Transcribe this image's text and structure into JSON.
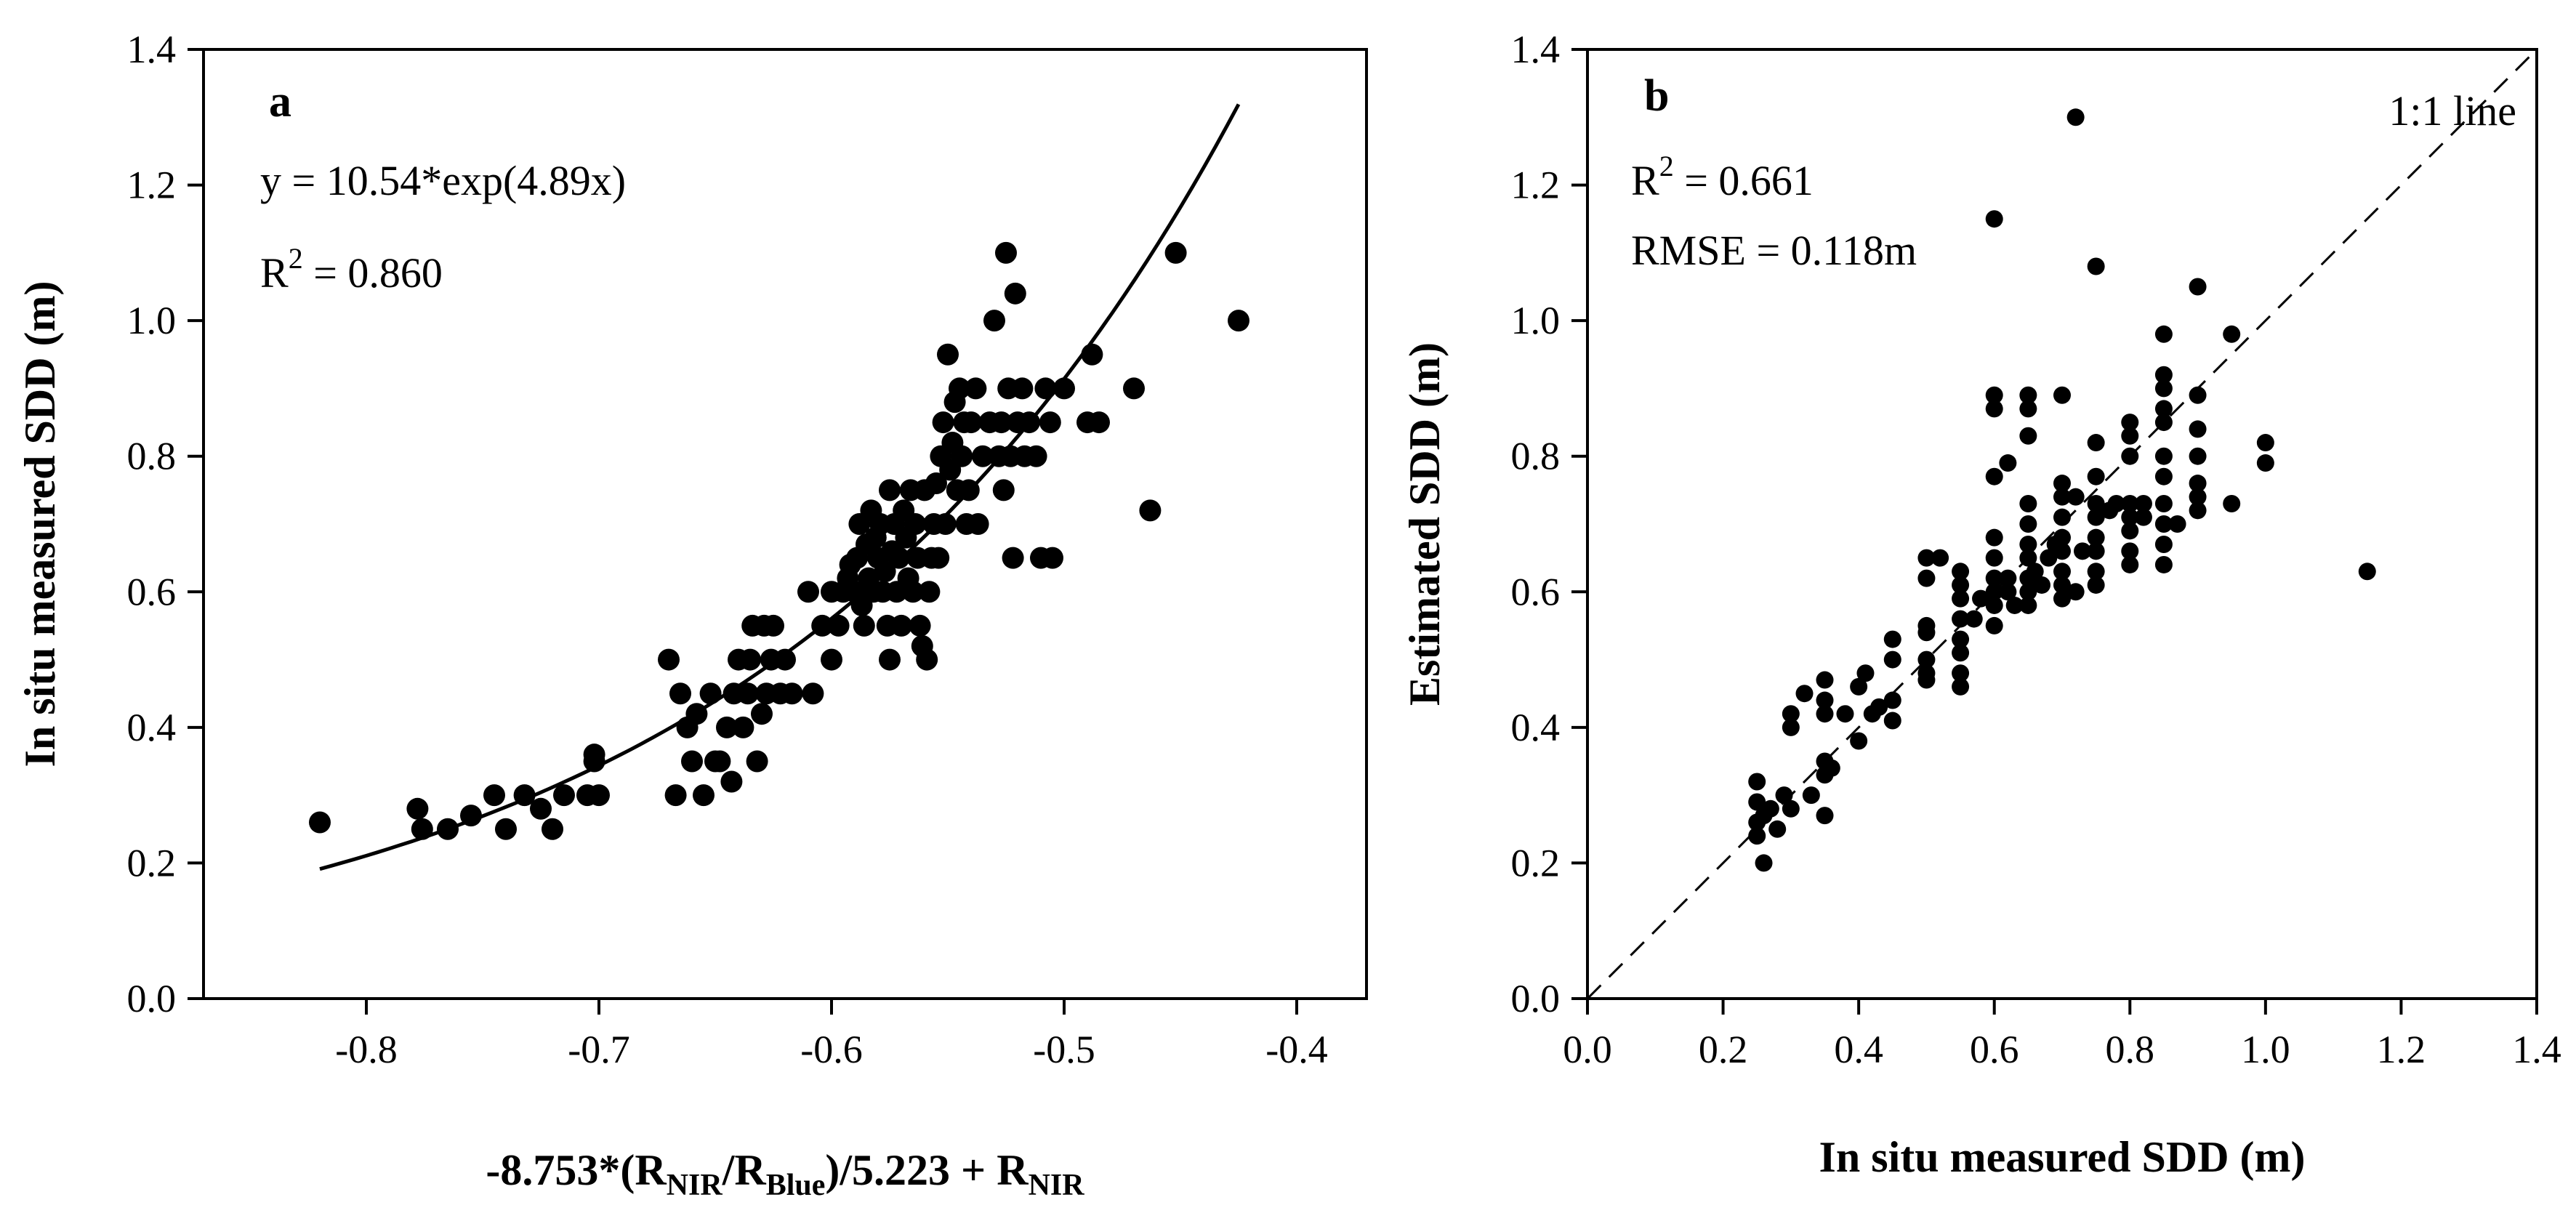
{
  "chart_data": [
    {
      "type": "scatter",
      "panel": "a",
      "xlabel_parts": [
        "-8.753*(R",
        "NIR",
        "/R",
        "Blue",
        ")/5.223 + R",
        "NIR"
      ],
      "ylabel": "In situ measured SDD (m)",
      "xlim": [
        -0.87,
        -0.37
      ],
      "ylim": [
        0.0,
        1.4
      ],
      "xticks": [
        -0.8,
        -0.7,
        -0.6,
        -0.5,
        -0.4
      ],
      "xtick_labels": [
        "-0.8",
        "-0.7",
        "-0.6",
        "-0.5",
        "-0.4"
      ],
      "yticks": [
        0.0,
        0.2,
        0.4,
        0.6,
        0.8,
        1.0,
        1.2,
        1.4
      ],
      "ytick_labels": [
        "0.0",
        "0.2",
        "0.4",
        "0.6",
        "0.8",
        "1.0",
        "1.2",
        "1.4"
      ],
      "annotations": {
        "equation": "y = 10.54*exp(4.89x)",
        "r2_prefix": "R",
        "r2_sup": "2",
        "r2_value": " = 0.860"
      },
      "fit": {
        "model": "exponential",
        "a": 10.54,
        "b": 4.89,
        "x_range": [
          -0.82,
          -0.425
        ]
      },
      "points": [
        [
          -0.82,
          0.26
        ],
        [
          -0.778,
          0.28
        ],
        [
          -0.776,
          0.25
        ],
        [
          -0.765,
          0.25
        ],
        [
          -0.755,
          0.27
        ],
        [
          -0.745,
          0.3
        ],
        [
          -0.74,
          0.25
        ],
        [
          -0.732,
          0.3
        ],
        [
          -0.725,
          0.28
        ],
        [
          -0.72,
          0.25
        ],
        [
          -0.715,
          0.3
        ],
        [
          -0.705,
          0.3
        ],
        [
          -0.702,
          0.35
        ],
        [
          -0.7,
          0.3
        ],
        [
          -0.702,
          0.36
        ],
        [
          -0.67,
          0.5
        ],
        [
          -0.667,
          0.3
        ],
        [
          -0.665,
          0.45
        ],
        [
          -0.662,
          0.4
        ],
        [
          -0.66,
          0.35
        ],
        [
          -0.658,
          0.42
        ],
        [
          -0.655,
          0.3
        ],
        [
          -0.652,
          0.45
        ],
        [
          -0.65,
          0.35
        ],
        [
          -0.648,
          0.35
        ],
        [
          -0.645,
          0.4
        ],
        [
          -0.643,
          0.32
        ],
        [
          -0.642,
          0.45
        ],
        [
          -0.64,
          0.5
        ],
        [
          -0.638,
          0.4
        ],
        [
          -0.636,
          0.45
        ],
        [
          -0.635,
          0.5
        ],
        [
          -0.634,
          0.55
        ],
        [
          -0.632,
          0.35
        ],
        [
          -0.63,
          0.42
        ],
        [
          -0.629,
          0.55
        ],
        [
          -0.628,
          0.45
        ],
        [
          -0.626,
          0.5
        ],
        [
          -0.625,
          0.55
        ],
        [
          -0.622,
          0.45
        ],
        [
          -0.62,
          0.5
        ],
        [
          -0.617,
          0.45
        ],
        [
          -0.61,
          0.6
        ],
        [
          -0.608,
          0.45
        ],
        [
          -0.604,
          0.55
        ],
        [
          -0.6,
          0.5
        ],
        [
          -0.6,
          0.6
        ],
        [
          -0.597,
          0.55
        ],
        [
          -0.595,
          0.6
        ],
        [
          -0.593,
          0.62
        ],
        [
          -0.592,
          0.64
        ],
        [
          -0.59,
          0.6
        ],
        [
          -0.589,
          0.65
        ],
        [
          -0.588,
          0.7
        ],
        [
          -0.587,
          0.58
        ],
        [
          -0.586,
          0.55
        ],
        [
          -0.585,
          0.67
        ],
        [
          -0.584,
          0.62
        ],
        [
          -0.583,
          0.72
        ],
        [
          -0.582,
          0.6
        ],
        [
          -0.581,
          0.68
        ],
        [
          -0.58,
          0.65
        ],
        [
          -0.579,
          0.7
        ],
        [
          -0.578,
          0.6
        ],
        [
          -0.577,
          0.63
        ],
        [
          -0.576,
          0.55
        ],
        [
          -0.575,
          0.75
        ],
        [
          -0.575,
          0.5
        ],
        [
          -0.574,
          0.66
        ],
        [
          -0.573,
          0.7
        ],
        [
          -0.572,
          0.6
        ],
        [
          -0.571,
          0.65
        ],
        [
          -0.57,
          0.55
        ],
        [
          -0.569,
          0.72
        ],
        [
          -0.568,
          0.68
        ],
        [
          -0.567,
          0.62
        ],
        [
          -0.566,
          0.75
        ],
        [
          -0.565,
          0.6
        ],
        [
          -0.564,
          0.7
        ],
        [
          -0.563,
          0.65
        ],
        [
          -0.562,
          0.55
        ],
        [
          -0.561,
          0.52
        ],
        [
          -0.56,
          0.75
        ],
        [
          -0.559,
          0.5
        ],
        [
          -0.558,
          0.6
        ],
        [
          -0.557,
          0.65
        ],
        [
          -0.556,
          0.7
        ],
        [
          -0.555,
          0.76
        ],
        [
          -0.554,
          0.65
        ],
        [
          -0.553,
          0.8
        ],
        [
          -0.552,
          0.85
        ],
        [
          -0.551,
          0.7
        ],
        [
          -0.55,
          0.95
        ],
        [
          -0.549,
          0.78
        ],
        [
          -0.548,
          0.82
        ],
        [
          -0.547,
          0.88
        ],
        [
          -0.546,
          0.75
        ],
        [
          -0.545,
          0.9
        ],
        [
          -0.544,
          0.8
        ],
        [
          -0.543,
          0.85
        ],
        [
          -0.542,
          0.7
        ],
        [
          -0.541,
          0.75
        ],
        [
          -0.54,
          0.85
        ],
        [
          -0.538,
          0.9
        ],
        [
          -0.537,
          0.7
        ],
        [
          -0.535,
          0.8
        ],
        [
          -0.532,
          0.85
        ],
        [
          -0.53,
          1.0
        ],
        [
          -0.528,
          0.8
        ],
        [
          -0.527,
          0.85
        ],
        [
          -0.526,
          0.75
        ],
        [
          -0.525,
          1.1
        ],
        [
          -0.524,
          0.9
        ],
        [
          -0.523,
          0.8
        ],
        [
          -0.522,
          0.65
        ],
        [
          -0.521,
          1.04
        ],
        [
          -0.52,
          0.85
        ],
        [
          -0.518,
          0.9
        ],
        [
          -0.517,
          0.8
        ],
        [
          -0.515,
          0.85
        ],
        [
          -0.512,
          0.8
        ],
        [
          -0.51,
          0.65
        ],
        [
          -0.508,
          0.9
        ],
        [
          -0.506,
          0.85
        ],
        [
          -0.505,
          0.65
        ],
        [
          -0.5,
          0.9
        ],
        [
          -0.49,
          0.85
        ],
        [
          -0.488,
          0.95
        ],
        [
          -0.485,
          0.85
        ],
        [
          -0.47,
          0.9
        ],
        [
          -0.463,
          0.72
        ],
        [
          -0.452,
          1.1
        ],
        [
          -0.425,
          1.0
        ]
      ]
    },
    {
      "type": "scatter",
      "panel": "b",
      "xlabel": "In situ measured SDD (m)",
      "ylabel": "Estimated SDD (m)",
      "xlim": [
        0.0,
        1.4
      ],
      "ylim": [
        0.0,
        1.4
      ],
      "xticks": [
        0.0,
        0.2,
        0.4,
        0.6,
        0.8,
        1.0,
        1.2,
        1.4
      ],
      "xtick_labels": [
        "0.0",
        "0.2",
        "0.4",
        "0.6",
        "0.8",
        "1.0",
        "1.2",
        "1.4"
      ],
      "yticks": [
        0.0,
        0.2,
        0.4,
        0.6,
        0.8,
        1.0,
        1.2,
        1.4
      ],
      "ytick_labels": [
        "0.0",
        "0.2",
        "0.4",
        "0.6",
        "0.8",
        "1.0",
        "1.2",
        "1.4"
      ],
      "annotations": {
        "r2_prefix": "R",
        "r2_sup": "2",
        "r2_value": " = 0.661",
        "rmse": "RMSE = 0.118m",
        "line_label": "1:1 line"
      },
      "reference_line": {
        "from": [
          0.0,
          0.0
        ],
        "to": [
          1.4,
          1.4
        ],
        "style": "dashed"
      },
      "points": [
        [
          0.25,
          0.32
        ],
        [
          0.25,
          0.26
        ],
        [
          0.25,
          0.24
        ],
        [
          0.26,
          0.2
        ],
        [
          0.25,
          0.29
        ],
        [
          0.26,
          0.27
        ],
        [
          0.28,
          0.25
        ],
        [
          0.27,
          0.28
        ],
        [
          0.29,
          0.3
        ],
        [
          0.3,
          0.42
        ],
        [
          0.3,
          0.4
        ],
        [
          0.3,
          0.28
        ],
        [
          0.32,
          0.45
        ],
        [
          0.33,
          0.3
        ],
        [
          0.35,
          0.47
        ],
        [
          0.35,
          0.44
        ],
        [
          0.35,
          0.42
        ],
        [
          0.35,
          0.35
        ],
        [
          0.35,
          0.33
        ],
        [
          0.35,
          0.27
        ],
        [
          0.36,
          0.34
        ],
        [
          0.38,
          0.42
        ],
        [
          0.4,
          0.46
        ],
        [
          0.4,
          0.38
        ],
        [
          0.41,
          0.48
        ],
        [
          0.42,
          0.42
        ],
        [
          0.43,
          0.43
        ],
        [
          0.45,
          0.53
        ],
        [
          0.45,
          0.5
        ],
        [
          0.45,
          0.44
        ],
        [
          0.45,
          0.41
        ],
        [
          0.5,
          0.65
        ],
        [
          0.5,
          0.62
        ],
        [
          0.5,
          0.55
        ],
        [
          0.5,
          0.54
        ],
        [
          0.5,
          0.5
        ],
        [
          0.5,
          0.48
        ],
        [
          0.5,
          0.47
        ],
        [
          0.52,
          0.65
        ],
        [
          0.55,
          0.63
        ],
        [
          0.55,
          0.61
        ],
        [
          0.55,
          0.59
        ],
        [
          0.55,
          0.56
        ],
        [
          0.55,
          0.53
        ],
        [
          0.55,
          0.51
        ],
        [
          0.55,
          0.48
        ],
        [
          0.55,
          0.46
        ],
        [
          0.57,
          0.56
        ],
        [
          0.58,
          0.59
        ],
        [
          0.6,
          0.89
        ],
        [
          0.6,
          0.87
        ],
        [
          0.6,
          0.77
        ],
        [
          0.6,
          0.68
        ],
        [
          0.6,
          0.65
        ],
        [
          0.6,
          0.62
        ],
        [
          0.6,
          0.6
        ],
        [
          0.6,
          0.58
        ],
        [
          0.6,
          0.55
        ],
        [
          0.6,
          1.15
        ],
        [
          0.62,
          0.79
        ],
        [
          0.62,
          0.62
        ],
        [
          0.62,
          0.6
        ],
        [
          0.63,
          0.58
        ],
        [
          0.65,
          0.89
        ],
        [
          0.65,
          0.87
        ],
        [
          0.65,
          0.83
        ],
        [
          0.65,
          0.73
        ],
        [
          0.65,
          0.7
        ],
        [
          0.65,
          0.67
        ],
        [
          0.65,
          0.65
        ],
        [
          0.65,
          0.62
        ],
        [
          0.65,
          0.6
        ],
        [
          0.65,
          0.58
        ],
        [
          0.66,
          0.63
        ],
        [
          0.67,
          0.61
        ],
        [
          0.68,
          0.65
        ],
        [
          0.69,
          0.67
        ],
        [
          0.7,
          0.89
        ],
        [
          0.7,
          0.76
        ],
        [
          0.7,
          0.74
        ],
        [
          0.7,
          0.71
        ],
        [
          0.7,
          0.68
        ],
        [
          0.7,
          0.66
        ],
        [
          0.7,
          0.63
        ],
        [
          0.7,
          0.61
        ],
        [
          0.7,
          0.59
        ],
        [
          0.72,
          1.3
        ],
        [
          0.72,
          0.74
        ],
        [
          0.72,
          0.6
        ],
        [
          0.73,
          0.66
        ],
        [
          0.75,
          1.08
        ],
        [
          0.75,
          0.82
        ],
        [
          0.75,
          0.77
        ],
        [
          0.75,
          0.73
        ],
        [
          0.75,
          0.71
        ],
        [
          0.75,
          0.68
        ],
        [
          0.75,
          0.66
        ],
        [
          0.75,
          0.63
        ],
        [
          0.75,
          0.61
        ],
        [
          0.77,
          0.72
        ],
        [
          0.78,
          0.73
        ],
        [
          0.8,
          0.85
        ],
        [
          0.8,
          0.83
        ],
        [
          0.8,
          0.8
        ],
        [
          0.8,
          0.73
        ],
        [
          0.8,
          0.71
        ],
        [
          0.8,
          0.69
        ],
        [
          0.8,
          0.66
        ],
        [
          0.8,
          0.64
        ],
        [
          0.82,
          0.73
        ],
        [
          0.82,
          0.71
        ],
        [
          0.85,
          0.98
        ],
        [
          0.85,
          0.92
        ],
        [
          0.85,
          0.9
        ],
        [
          0.85,
          0.87
        ],
        [
          0.85,
          0.85
        ],
        [
          0.85,
          0.8
        ],
        [
          0.85,
          0.77
        ],
        [
          0.85,
          0.73
        ],
        [
          0.85,
          0.7
        ],
        [
          0.85,
          0.67
        ],
        [
          0.85,
          0.64
        ],
        [
          0.87,
          0.7
        ],
        [
          0.9,
          1.05
        ],
        [
          0.9,
          0.89
        ],
        [
          0.9,
          0.84
        ],
        [
          0.9,
          0.8
        ],
        [
          0.9,
          0.76
        ],
        [
          0.9,
          0.74
        ],
        [
          0.9,
          0.72
        ],
        [
          0.95,
          0.98
        ],
        [
          0.95,
          0.73
        ],
        [
          1.0,
          0.82
        ],
        [
          1.0,
          0.79
        ],
        [
          1.15,
          0.63
        ]
      ]
    }
  ]
}
